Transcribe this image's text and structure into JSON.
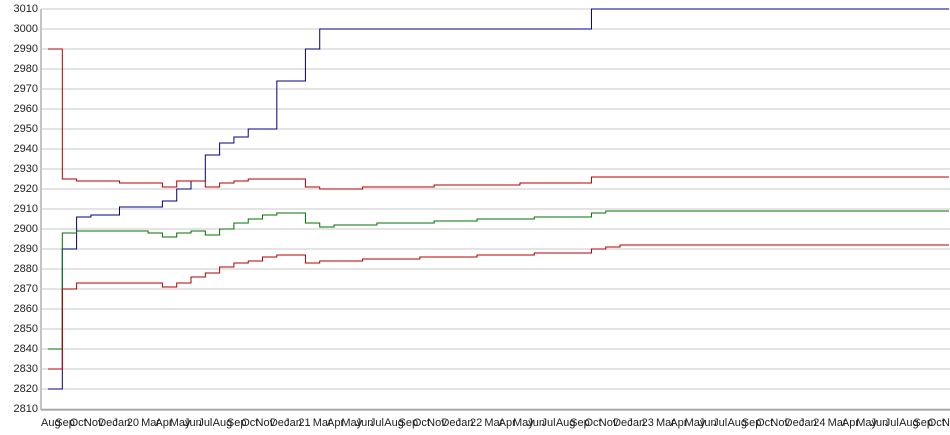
{
  "chart_data": {
    "type": "line",
    "categories": [
      "Aug",
      "Sep",
      "Oct",
      "Nov",
      "Dec",
      "Jan",
      "20",
      "Mar",
      "Apr",
      "May",
      "Jun",
      "Jul",
      "Aug",
      "Sep",
      "Oct",
      "Nov",
      "Dec",
      "Jan",
      "21",
      "Mar",
      "Apr",
      "May",
      "Jun",
      "Jul",
      "Aug",
      "Sep",
      "Oct",
      "Nov",
      "Dec",
      "Jan",
      "22",
      "Mar",
      "Apr",
      "May",
      "Jun",
      "Jul",
      "Aug",
      "Sep",
      "Oct",
      "Nov",
      "Dec",
      "Jan",
      "23",
      "Mar",
      "Apr",
      "May",
      "Jun",
      "Jul",
      "Aug",
      "Sep",
      "Oct",
      "Nov",
      "Dec",
      "Jan",
      "24",
      "Mar",
      "Apr",
      "May",
      "Jun",
      "Jul",
      "Aug",
      "Sep",
      "Oct",
      "Nov"
    ],
    "series": [
      {
        "color": "#000080",
        "values": [
          2820,
          2890,
          2906,
          2907,
          2907,
          2911,
          2911,
          2911,
          2914,
          2920,
          2924,
          2937,
          2943,
          2946,
          2950,
          2950,
          2974,
          2974,
          2990,
          3000,
          3000,
          3000,
          3000,
          3000,
          3000,
          3000,
          3000,
          3000,
          3000,
          3000,
          3000,
          3000,
          3000,
          3000,
          3000,
          3000,
          3000,
          3000,
          3010,
          3010,
          3010,
          3010,
          3010,
          3010,
          3010,
          3010,
          3010,
          3010,
          3010,
          3010,
          3010,
          3010,
          3010,
          3010,
          3010,
          3010,
          3010,
          3010,
          3010,
          3010,
          3010,
          3010,
          3010,
          3010
        ]
      },
      {
        "color": "#b00000",
        "values": [
          2990,
          2925,
          2924,
          2924,
          2924,
          2923,
          2923,
          2923,
          2921,
          2924,
          2924,
          2921,
          2923,
          2924,
          2925,
          2925,
          2925,
          2925,
          2921,
          2920,
          2920,
          2920,
          2921,
          2921,
          2921,
          2921,
          2921,
          2922,
          2922,
          2922,
          2922,
          2922,
          2922,
          2923,
          2923,
          2923,
          2923,
          2923,
          2926,
          2926,
          2926,
          2926,
          2926,
          2926,
          2926,
          2926,
          2926,
          2926,
          2926,
          2926,
          2926,
          2926,
          2926,
          2926,
          2926,
          2926,
          2926,
          2926,
          2926,
          2926,
          2926,
          2926,
          2926,
          2926
        ]
      },
      {
        "color": "#007000",
        "values": [
          2840,
          2898,
          2899,
          2899,
          2899,
          2899,
          2899,
          2898,
          2896,
          2898,
          2899,
          2897,
          2900,
          2903,
          2905,
          2907,
          2908,
          2908,
          2903,
          2901,
          2902,
          2902,
          2902,
          2903,
          2903,
          2903,
          2903,
          2904,
          2904,
          2904,
          2905,
          2905,
          2905,
          2905,
          2906,
          2906,
          2906,
          2906,
          2908,
          2909,
          2909,
          2909,
          2909,
          2909,
          2909,
          2909,
          2909,
          2909,
          2909,
          2909,
          2909,
          2909,
          2909,
          2909,
          2909,
          2909,
          2909,
          2909,
          2909,
          2909,
          2909,
          2909,
          2909,
          2909
        ]
      },
      {
        "color": "#b00000",
        "values": [
          2830,
          2870,
          2873,
          2873,
          2873,
          2873,
          2873,
          2873,
          2871,
          2873,
          2876,
          2878,
          2881,
          2883,
          2884,
          2886,
          2887,
          2887,
          2883,
          2884,
          2884,
          2884,
          2885,
          2885,
          2885,
          2885,
          2886,
          2886,
          2886,
          2886,
          2887,
          2887,
          2887,
          2887,
          2888,
          2888,
          2888,
          2888,
          2890,
          2891,
          2892,
          2892,
          2892,
          2892,
          2892,
          2892,
          2892,
          2892,
          2892,
          2892,
          2892,
          2892,
          2892,
          2892,
          2892,
          2892,
          2892,
          2892,
          2892,
          2892,
          2892,
          2892,
          2892,
          2892
        ]
      }
    ],
    "ylim": [
      2810,
      3010
    ],
    "yticks": [
      2810,
      2820,
      2830,
      2840,
      2850,
      2860,
      2870,
      2880,
      2890,
      2900,
      2910,
      2920,
      2930,
      2940,
      2950,
      2960,
      2970,
      2980,
      2990,
      3000,
      3010
    ],
    "grid": true
  }
}
